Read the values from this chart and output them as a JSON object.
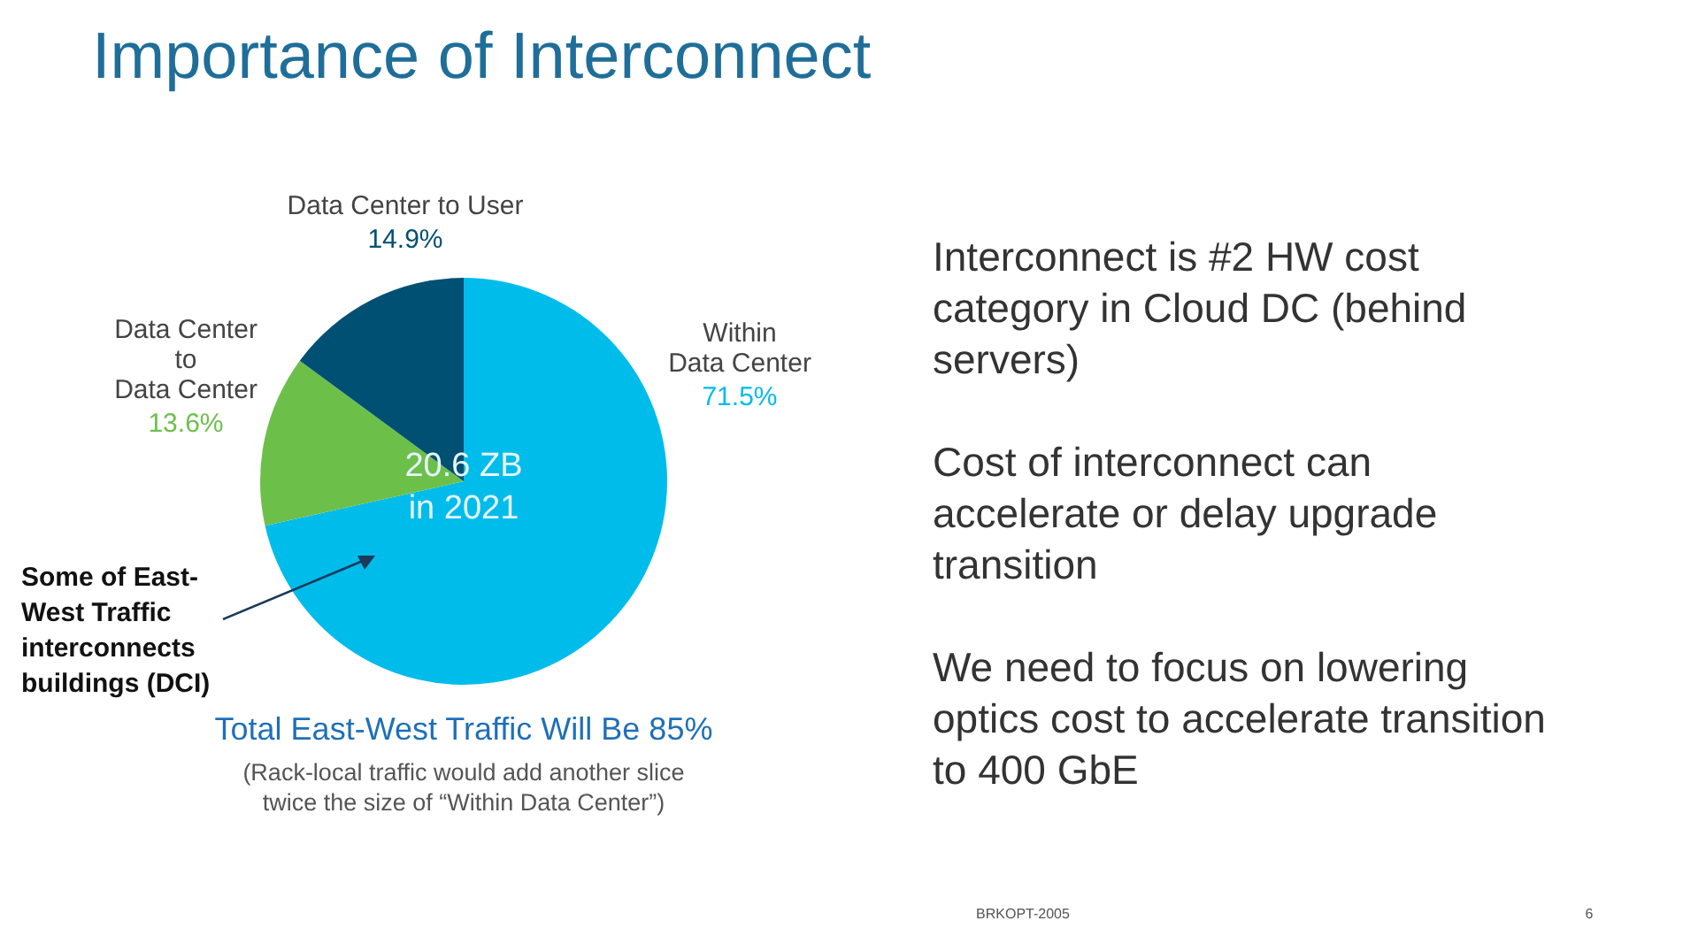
{
  "chart_data": {
    "type": "pie",
    "title": "Importance of Interconnect",
    "categories": [
      "Within\nData Center",
      "Data Center\nto\nData Center",
      "Data Center to User"
    ],
    "values": [
      71.5,
      13.6,
      14.9
    ],
    "colors": [
      "#00bceb",
      "#6cc04a",
      "#005073"
    ],
    "value_labels": [
      "71.5%",
      "13.6%",
      "14.9%"
    ],
    "annotations": [
      "20.6 ZB\nin 2021",
      "Some of East-\nWest Traffic\ninterconnects\nbuildings (DCI)",
      "Total East-West Traffic Will Be 85%",
      "(Rack-local traffic would add another slice\ntwice the size of “Within Data Center”)",
      "Interconnect is #2 HW cost\ncategory in Cloud DC (behind\nservers)",
      "Cost of interconnect can\naccelerate or delay upgrade\ntransition",
      "We need to focus on lowering\noptics cost to accelerate transition\nto 400 GbE",
      "BRKOPT-2005",
      "6"
    ]
  }
}
